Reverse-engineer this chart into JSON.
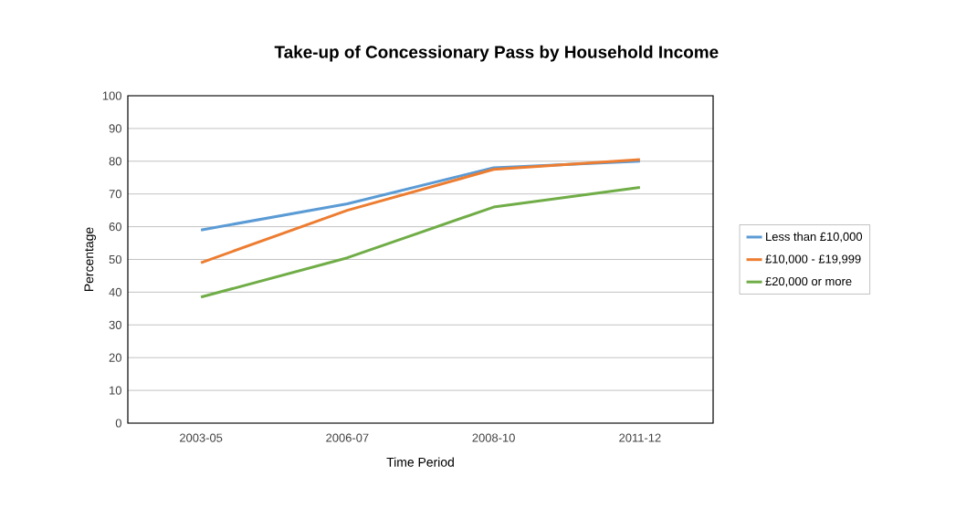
{
  "chart_data": {
    "type": "line",
    "title": "Take-up of Concessionary Pass by Household Income",
    "xlabel": "Time Period",
    "ylabel": "Percentage",
    "categories": [
      "2003-05",
      "2006-07",
      "2008-10",
      "2011-12"
    ],
    "series": [
      {
        "name": "Less than £10,000",
        "color": "#5b9bd5",
        "values": [
          59,
          67,
          78,
          80
        ]
      },
      {
        "name": "£10,000 - £19,999",
        "color": "#ed7d31",
        "values": [
          49,
          65,
          77.5,
          80.5
        ]
      },
      {
        "name": "£20,000 or more",
        "color": "#70ad47",
        "values": [
          38.5,
          50.5,
          66,
          72
        ]
      }
    ],
    "ylim": [
      0,
      100
    ],
    "yticks": [
      0,
      10,
      20,
      30,
      40,
      50,
      60,
      70,
      80,
      90,
      100
    ],
    "grid": "y",
    "legend": "right",
    "marker": "none",
    "line_style": "solid"
  }
}
